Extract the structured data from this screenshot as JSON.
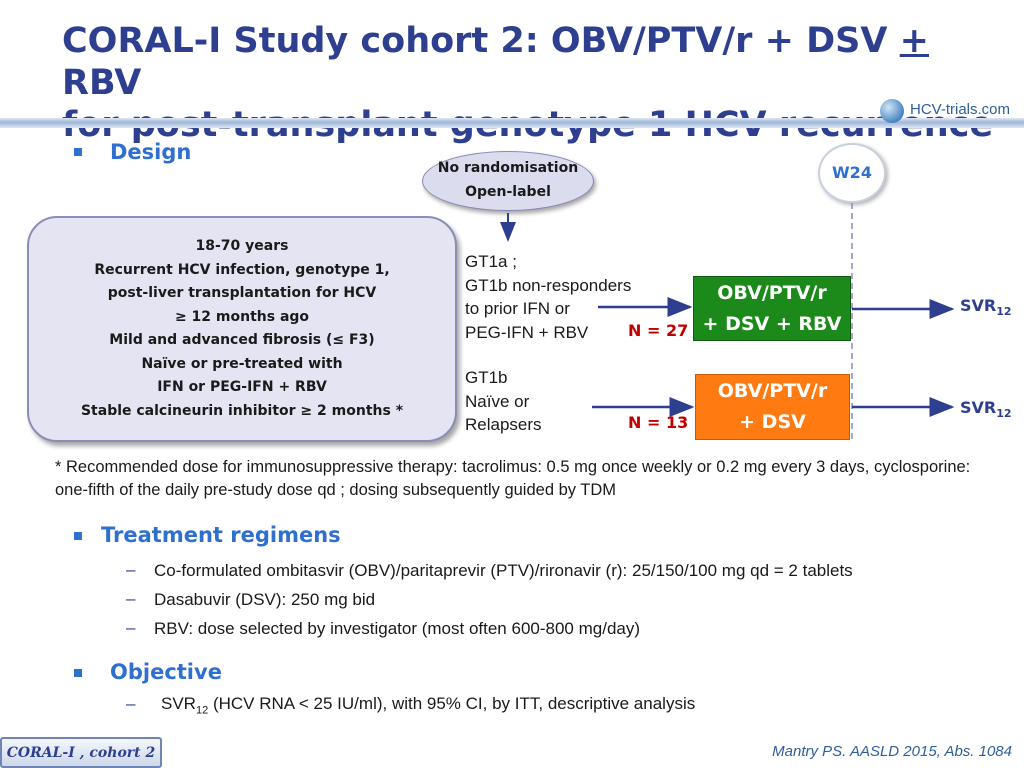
{
  "title": {
    "line1_a": "CORAL-I Study cohort 2: OBV/PTV/r + DSV ",
    "line1_plus": "+",
    "line1_b": " RBV",
    "line2": "for post-transplant genotype 1 HCV recurrence"
  },
  "logo": {
    "text": "HCV-trials.com",
    "icon": "globe-icon"
  },
  "design": {
    "heading": "Design",
    "oval": [
      "No randomisation",
      "Open-label"
    ],
    "timepoint": "W24",
    "criteria": [
      "18-70 years",
      "Recurrent HCV infection, genotype 1,",
      "post-liver transplantation for HCV",
      "≥ 12 months ago",
      "Mild and advanced fibrosis (≤ F3)",
      "Naïve or pre-treated with",
      "IFN or PEG-IFN + RBV",
      "Stable calcineurin inhibitor ≥ 2 months *"
    ],
    "groups": [
      {
        "lines": [
          "GT1a ;",
          "GT1b non-responders",
          "to prior IFN or",
          "PEG-IFN + RBV"
        ],
        "n": "N = 27",
        "arm": [
          "OBV/PTV/r",
          "+ DSV + RBV"
        ],
        "arm_color": "#1b8a1b",
        "outcome": "SVR",
        "outcome_sub": "12"
      },
      {
        "lines": [
          "GT1b",
          "Naïve or",
          "Relapsers"
        ],
        "n": "N = 13",
        "arm": [
          "OBV/PTV/r",
          "+ DSV"
        ],
        "arm_color": "#ff7b12",
        "outcome": "SVR",
        "outcome_sub": "12"
      }
    ]
  },
  "footnote": "* Recommended dose for immunosuppressive therapy: tacrolimus: 0.5 mg once weekly or 0.2 mg every 3 days, cyclosporine: one-fifth of the daily pre-study dose qd ; dosing subsequently guided by TDM",
  "treatment": {
    "heading": "Treatment regimens",
    "items": [
      "Co-formulated ombitasvir (OBV)/paritaprevir (PTV)/rironavir (r): 25/150/100 mg qd = 2 tablets",
      "Dasabuvir (DSV): 250 mg bid",
      "RBV: dose selected by investigator (most often 600-800 mg/day)"
    ]
  },
  "objective": {
    "heading": "Objective",
    "item_main": "SVR",
    "item_sub": "12",
    "item_rest": " (HCV RNA < 25 IU/ml), with 95% CI, by ITT, descriptive analysis"
  },
  "footer": {
    "tag": "CORAL-I , cohort 2",
    "citation": "Mantry PS. AASLD 2015, Abs. 1084"
  },
  "colors": {
    "title": "#2e3f8f",
    "heading": "#2f6fd0",
    "n_value": "#c00000",
    "arrow": "#2e3f8f"
  }
}
